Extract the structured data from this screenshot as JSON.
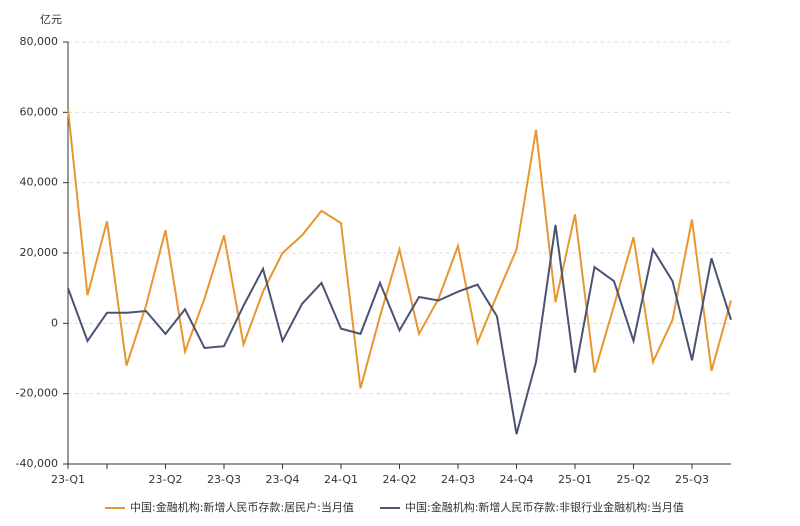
{
  "chart_data": {
    "type": "line",
    "y_unit": "亿元",
    "categories": [
      "23-Q1",
      null,
      null,
      null,
      null,
      "23-Q2",
      null,
      null,
      "23-Q3",
      null,
      null,
      "23-Q4",
      null,
      null,
      "24-Q1",
      null,
      null,
      "24-Q2",
      null,
      null,
      "24-Q3",
      null,
      null,
      "24-Q4",
      null,
      null,
      "25-Q1",
      null,
      null,
      "25-Q2",
      null,
      null,
      "25-Q3",
      null,
      null
    ],
    "series": [
      {
        "name": "中国:金融机构:新增人民币存款:居民户:当月值",
        "color": "#e8962e",
        "values": [
          61000,
          8000,
          29000,
          -12000,
          5000,
          26500,
          -8000,
          7000,
          25000,
          -6000,
          9000,
          20000,
          25000,
          32000,
          28500,
          -18500,
          2000,
          21000,
          -3000,
          7000,
          22000,
          -5500,
          8000,
          21000,
          55000,
          6000,
          31000,
          -14000,
          5000,
          24500,
          -11000,
          1000,
          29500,
          -13500,
          6500
        ]
      },
      {
        "name": "中国:金融机构:新增人民币存款:非银行业金融机构:当月值",
        "color": "#4a5373",
        "values": [
          10000,
          -5000,
          3000,
          3000,
          3500,
          -3000,
          4000,
          -7000,
          -6500,
          5000,
          15500,
          -5000,
          5500,
          11500,
          -1500,
          -3000,
          11500,
          -2000,
          7500,
          6500,
          9000,
          11000,
          2000,
          -31500,
          -11000,
          28000,
          -14000,
          16000,
          12000,
          -5000,
          21000,
          12000,
          -10500,
          18500,
          1000
        ]
      }
    ],
    "ylim": [
      -40000,
      80000
    ],
    "yticks": [
      {
        "value": -40000,
        "label": "-40,000"
      },
      {
        "value": -20000,
        "label": "-20,000"
      },
      0,
      {
        "value": 20000,
        "label": "20,000"
      },
      {
        "value": 40000,
        "label": "40,000"
      },
      {
        "value": 60000,
        "label": "60,000"
      },
      {
        "value": 80000,
        "label": "80,000"
      }
    ],
    "grid": true
  }
}
